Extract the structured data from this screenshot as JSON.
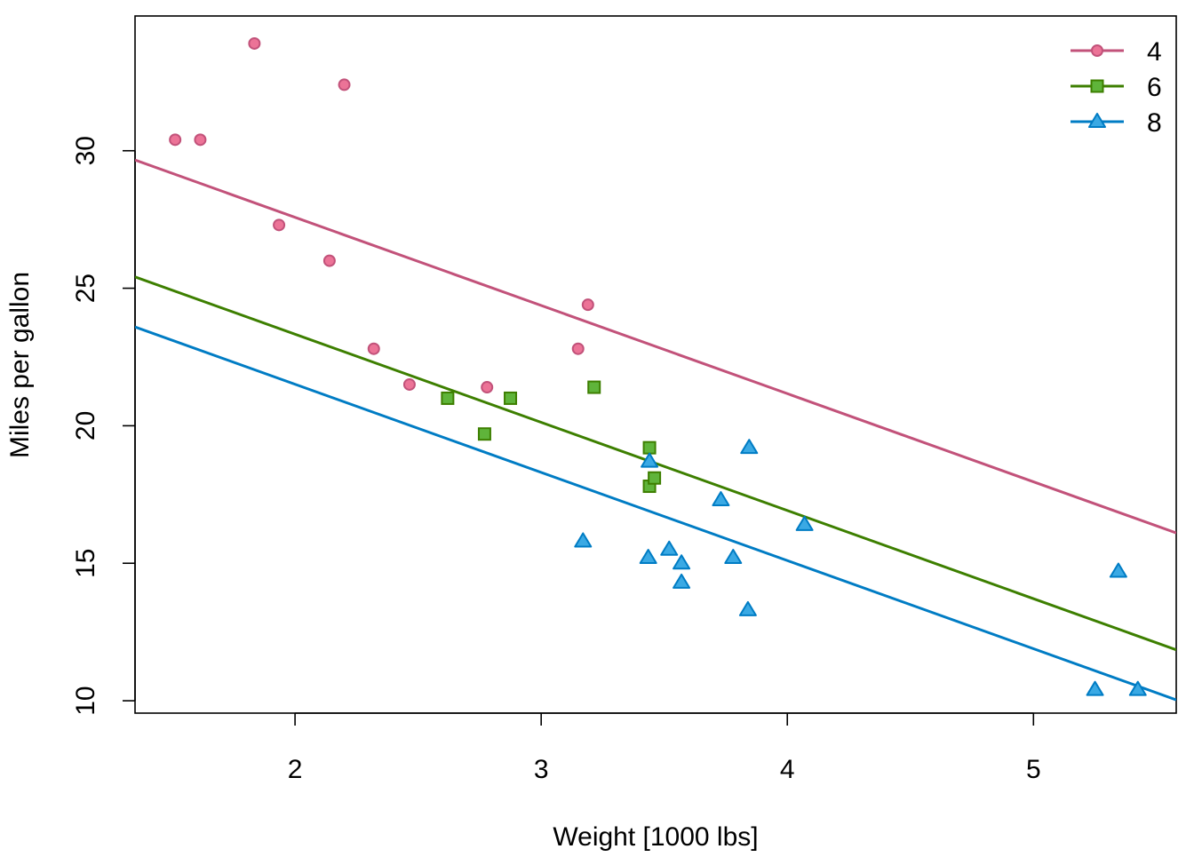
{
  "chart_data": {
    "type": "scatter",
    "xlabel": "Weight [1000 lbs]",
    "ylabel": "Miles per gallon",
    "xlim": [
      1.35,
      5.58
    ],
    "ylim": [
      9.55,
      34.9
    ],
    "x_ticks": [
      2,
      3,
      4,
      5
    ],
    "y_ticks": [
      10,
      15,
      20,
      25,
      30
    ],
    "grid": false,
    "legend_position": "top-right",
    "series": [
      {
        "name": "4",
        "marker": "circle",
        "color": "#c2527a",
        "fill": "#ec7397",
        "points": [
          [
            1.513,
            30.4
          ],
          [
            1.615,
            30.4
          ],
          [
            1.835,
            33.9
          ],
          [
            1.935,
            27.3
          ],
          [
            2.14,
            26.0
          ],
          [
            2.2,
            32.4
          ],
          [
            2.32,
            22.8
          ],
          [
            2.465,
            21.5
          ],
          [
            2.78,
            21.4
          ],
          [
            3.15,
            22.8
          ],
          [
            3.19,
            24.4
          ]
        ],
        "fit": {
          "intercept": 33.99,
          "slope": -3.2056
        }
      },
      {
        "name": "6",
        "marker": "square",
        "color": "#3d7f00",
        "fill": "#5fb43a",
        "points": [
          [
            2.62,
            21.0
          ],
          [
            2.77,
            19.7
          ],
          [
            2.875,
            21.0
          ],
          [
            3.215,
            21.4
          ],
          [
            3.44,
            19.2
          ],
          [
            3.44,
            17.8
          ],
          [
            3.46,
            18.1
          ]
        ],
        "fit": {
          "intercept": 29.74,
          "slope": -3.2056
        }
      },
      {
        "name": "8",
        "marker": "triangle",
        "color": "#007cc4",
        "fill": "#3aa9e4",
        "points": [
          [
            3.17,
            15.8
          ],
          [
            3.435,
            15.2
          ],
          [
            3.44,
            18.7
          ],
          [
            3.52,
            15.5
          ],
          [
            3.57,
            15.0
          ],
          [
            3.57,
            14.3
          ],
          [
            3.73,
            17.3
          ],
          [
            3.78,
            15.2
          ],
          [
            3.84,
            13.3
          ],
          [
            3.845,
            19.2
          ],
          [
            4.07,
            16.4
          ],
          [
            5.25,
            10.4
          ],
          [
            5.345,
            14.7
          ],
          [
            5.424,
            10.4
          ]
        ],
        "fit": {
          "intercept": 27.92,
          "slope": -3.2056
        }
      }
    ]
  }
}
